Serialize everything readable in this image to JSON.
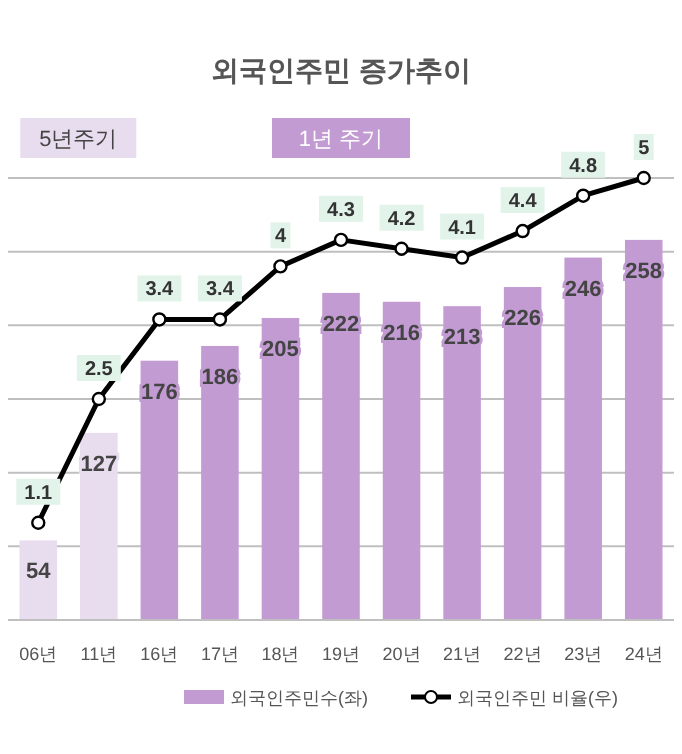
{
  "chart_data": {
    "type": "bar",
    "title": "외국인주민 증가추이",
    "categories": [
      "06년",
      "11년",
      "16년",
      "17년",
      "18년",
      "19년",
      "20년",
      "21년",
      "22년",
      "23년",
      "24년"
    ],
    "series": [
      {
        "name": "외국인주민수(좌)",
        "color": "#c39bd3",
        "colors": [
          "#e8dcef",
          "#e8dcef",
          "#c39bd3",
          "#c39bd3",
          "#c39bd3",
          "#c39bd3",
          "#c39bd3",
          "#c39bd3",
          "#c39bd3",
          "#c39bd3",
          "#c39bd3"
        ],
        "values": [
          54,
          127,
          176,
          186,
          205,
          222,
          216,
          213,
          226,
          246,
          258
        ]
      },
      {
        "name": "외국인주민 비율(우)",
        "type": "line",
        "axis": "y2",
        "color": "#000000",
        "values": [
          1.1,
          2.5,
          3.4,
          3.4,
          4,
          4.3,
          4.2,
          4.1,
          4.4,
          4.8,
          5
        ]
      }
    ],
    "ylim": [
      0,
      300
    ],
    "y2lim": [
      0,
      5
    ],
    "grid": "y",
    "yticks": [
      0,
      50,
      100,
      150,
      200,
      250,
      300
    ],
    "tick_labels": "x",
    "data_labels": true,
    "marker": "circle",
    "line_style": "solid",
    "legend": "bottom",
    "annotations": [
      "5년주기",
      "1년 주기"
    ]
  }
}
